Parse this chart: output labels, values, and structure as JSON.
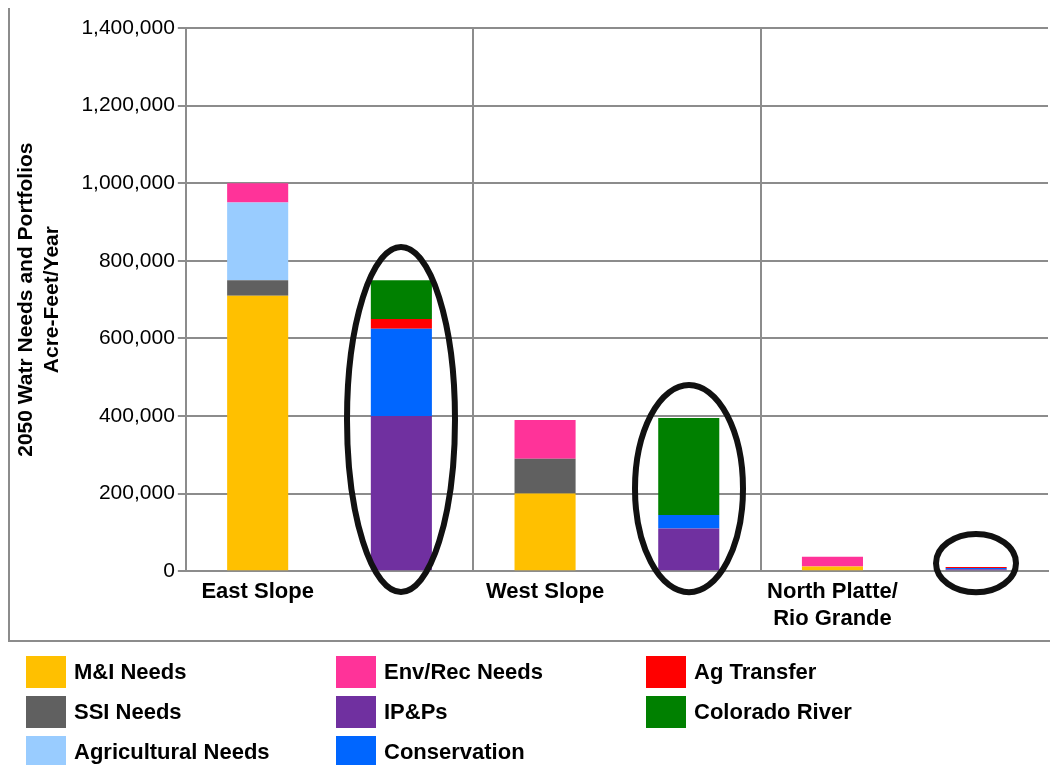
{
  "chart_data": {
    "type": "bar",
    "ylabel": "2050 Watr Needs and Portfolios\nAcre-Feet/Year",
    "categories": [
      "East Slope",
      null,
      "West Slope",
      null,
      "North Platte/\nRio Grande",
      null
    ],
    "stacked": true,
    "ylim": [
      0,
      1400000
    ],
    "yticks": [
      0,
      {
        "value": 200000,
        "label": "200,000"
      },
      {
        "value": 400000,
        "label": "400,000"
      },
      {
        "value": 600000,
        "label": "600,000"
      },
      {
        "value": 800000,
        "label": "800,000"
      },
      {
        "value": 1000000,
        "label": "1,000,000"
      },
      {
        "value": 1200000,
        "label": "1,200,000"
      },
      {
        "value": 1400000,
        "label": "1,400,000"
      }
    ],
    "grid": true,
    "legend": "bottom",
    "series": [
      {
        "name": "M&I Needs",
        "color": "#ffc000",
        "values": [
          710000,
          null,
          200000,
          null,
          12000,
          null
        ]
      },
      {
        "name": "SSI Needs",
        "color": "#606060",
        "values": [
          40000,
          null,
          90000,
          null,
          null,
          null
        ]
      },
      {
        "name": "Agricultural Needs",
        "color": "#99ccff",
        "values": [
          200000,
          null,
          null,
          null,
          null,
          null
        ]
      },
      {
        "name": "Env/Rec Needs",
        "color": "#ff3399",
        "values": [
          50000,
          null,
          100000,
          null,
          25000,
          null
        ]
      },
      {
        "name": "IP&Ps",
        "color": "#7030a0",
        "values": [
          null,
          400000,
          null,
          110000,
          null,
          5000
        ]
      },
      {
        "name": "Conservation",
        "color": "#0066ff",
        "values": [
          null,
          225000,
          null,
          35000,
          null,
          3000
        ]
      },
      {
        "name": "Ag Transfer",
        "color": "#ff0000",
        "values": [
          null,
          25000,
          null,
          null,
          null,
          3000
        ]
      },
      {
        "name": "Colorado River",
        "color": "#008000",
        "values": [
          null,
          100000,
          null,
          250000,
          null,
          null
        ]
      }
    ]
  }
}
